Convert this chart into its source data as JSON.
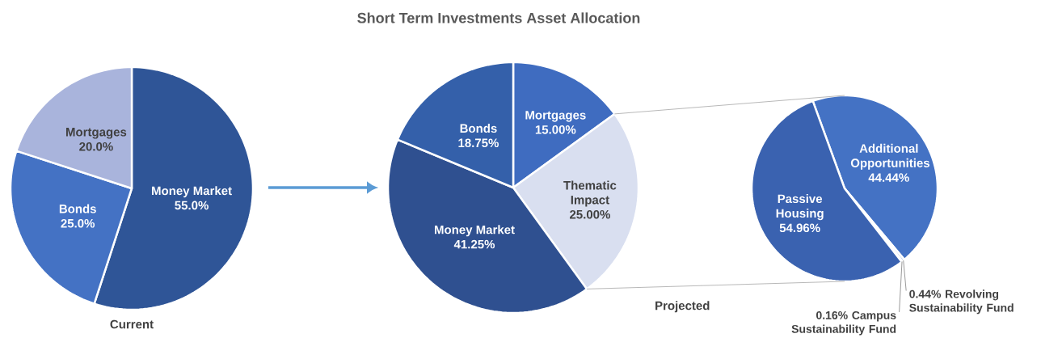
{
  "chart_data": [
    {
      "type": "pie",
      "xlabel": "Current",
      "categories": [
        "Money Market",
        "Bonds",
        "Mortgages"
      ],
      "values": [
        55.0,
        25.0,
        20.0
      ],
      "value_labels": [
        "55.0%",
        "25.0%",
        "20.0%"
      ],
      "colors": [
        "#2f5597",
        "#4472c4",
        "#a9b4dc"
      ]
    },
    {
      "type": "pie",
      "title": "Short Term Investments Asset Allocation",
      "xlabel": "Projected",
      "categories": [
        "Mortgages",
        "Thematic Impact",
        "Money Market",
        "Bonds"
      ],
      "values": [
        15.0,
        25.0,
        41.25,
        18.75
      ],
      "value_labels": [
        "15.00%",
        "25.00%",
        "41.25%",
        "18.75%"
      ],
      "colors": [
        "#3f6cc0",
        "#d9dff0",
        "#2f5090",
        "#3460aa"
      ]
    },
    {
      "type": "pie",
      "categories": [
        "Additional Opportunities",
        "Revolving Sustainability Fund",
        "Campus Sustainability Fund",
        "Passive Housing"
      ],
      "values": [
        44.44,
        0.44,
        0.16,
        54.96
      ],
      "value_labels": [
        "44.44%",
        "0.44%",
        "0.16%",
        "54.96%"
      ],
      "colors": [
        "#4472c4",
        "#8faadc",
        "#b4c7e7",
        "#3a62b0"
      ]
    }
  ]
}
